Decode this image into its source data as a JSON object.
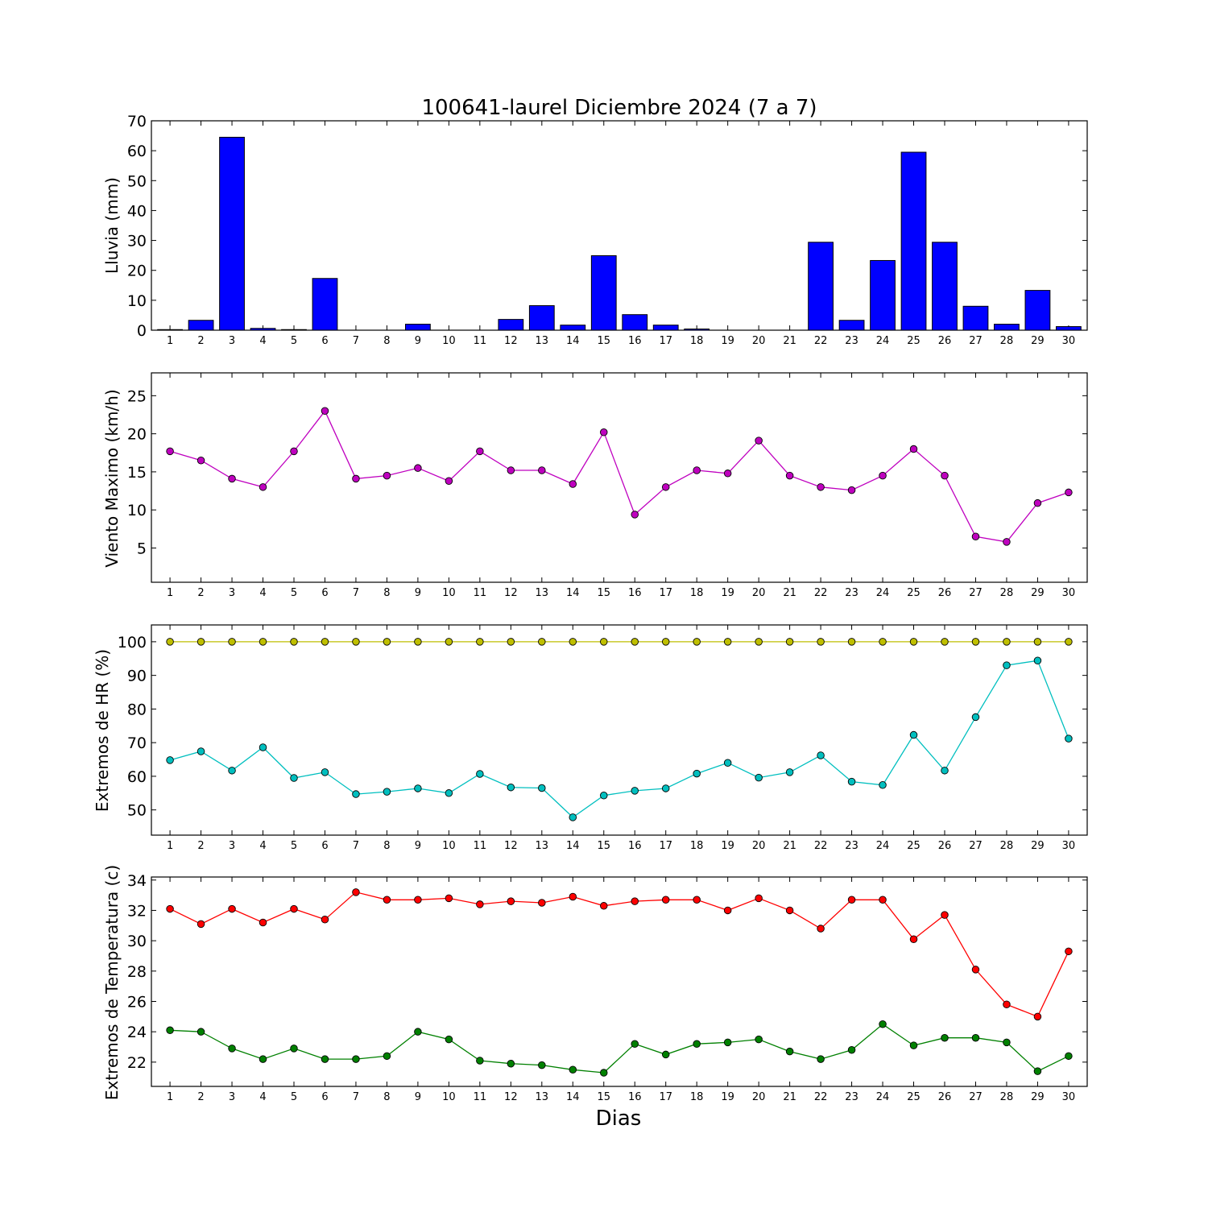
{
  "chart_data": [
    {
      "type": "bar",
      "title": "100641-laurel Diciembre 2024  (7 a 7)",
      "xlabel": "",
      "ylabel": "Lluvia (mm)",
      "categories": [
        "1",
        "2",
        "3",
        "4",
        "5",
        "6",
        "7",
        "8",
        "9",
        "10",
        "11",
        "12",
        "13",
        "14",
        "15",
        "16",
        "17",
        "18",
        "19",
        "20",
        "21",
        "22",
        "23",
        "24",
        "25",
        "26",
        "27",
        "28",
        "29",
        "30"
      ],
      "ylim": [
        0,
        70
      ],
      "yticks": [
        "0",
        "10",
        "20",
        "30",
        "40",
        "50",
        "60",
        "70"
      ],
      "series": [
        {
          "color": "#0000ff",
          "values": [
            0.2,
            3.3,
            64.5,
            0.6,
            0.2,
            17.3,
            0.0,
            0.0,
            2.0,
            0.0,
            0.0,
            3.6,
            8.2,
            1.7,
            24.9,
            5.2,
            1.7,
            0.4,
            0.0,
            0.0,
            0.0,
            29.4,
            3.3,
            23.3,
            59.5,
            29.4,
            8.0,
            2.0,
            13.3,
            1.2
          ]
        }
      ],
      "grid": false
    },
    {
      "type": "line",
      "ylabel": "Viento Maximo (km/h)",
      "categories": [
        "1",
        "2",
        "3",
        "4",
        "5",
        "6",
        "7",
        "8",
        "9",
        "10",
        "11",
        "12",
        "13",
        "14",
        "15",
        "16",
        "17",
        "18",
        "19",
        "20",
        "21",
        "22",
        "23",
        "24",
        "25",
        "26",
        "27",
        "28",
        "29",
        "30"
      ],
      "ylim": [
        0.5,
        28
      ],
      "yticks": [
        "5",
        "10",
        "15",
        "20",
        "25"
      ],
      "series": [
        {
          "color": "#bf00bf",
          "values": [
            17.7,
            16.5,
            14.1,
            13.0,
            17.7,
            23.0,
            14.1,
            14.5,
            15.5,
            13.8,
            17.7,
            15.2,
            15.2,
            13.4,
            20.2,
            9.4,
            13.0,
            15.2,
            14.8,
            19.1,
            14.5,
            13.0,
            12.6,
            14.5,
            18.0,
            14.5,
            6.5,
            5.8,
            10.9,
            12.3
          ]
        }
      ],
      "grid": false
    },
    {
      "type": "line",
      "ylabel": "Extremos de HR (%)",
      "categories": [
        "1",
        "2",
        "3",
        "4",
        "5",
        "6",
        "7",
        "8",
        "9",
        "10",
        "11",
        "12",
        "13",
        "14",
        "15",
        "16",
        "17",
        "18",
        "19",
        "20",
        "21",
        "22",
        "23",
        "24",
        "25",
        "26",
        "27",
        "28",
        "29",
        "30"
      ],
      "ylim": [
        42.5,
        105
      ],
      "yticks": [
        "50",
        "60",
        "70",
        "80",
        "90",
        "100"
      ],
      "series": [
        {
          "color": "#bfbf00",
          "values": [
            100,
            100,
            100,
            100,
            100,
            100,
            100,
            100,
            100,
            100,
            100,
            100,
            100,
            100,
            100,
            100,
            100,
            100,
            100,
            100,
            100,
            100,
            100,
            100,
            100,
            100,
            100,
            100,
            100,
            100
          ]
        },
        {
          "color": "#00bfbf",
          "values": [
            64.8,
            67.4,
            61.7,
            68.6,
            59.5,
            61.2,
            54.7,
            55.4,
            56.4,
            55.0,
            60.7,
            56.7,
            56.5,
            47.8,
            54.3,
            55.7,
            56.4,
            60.8,
            64.0,
            59.6,
            61.2,
            66.2,
            58.4,
            57.4,
            72.3,
            61.7,
            77.6,
            93.0,
            94.4,
            71.2
          ]
        }
      ],
      "grid": false
    },
    {
      "type": "line",
      "xlabel": "Dias",
      "ylabel": "Extremos de Temperatura (c)",
      "categories": [
        "1",
        "2",
        "3",
        "4",
        "5",
        "6",
        "7",
        "8",
        "9",
        "10",
        "11",
        "12",
        "13",
        "14",
        "15",
        "16",
        "17",
        "18",
        "19",
        "20",
        "21",
        "22",
        "23",
        "24",
        "25",
        "26",
        "27",
        "28",
        "29",
        "30"
      ],
      "ylim": [
        20.4,
        34.2
      ],
      "yticks": [
        "22",
        "24",
        "26",
        "28",
        "30",
        "32",
        "34"
      ],
      "series": [
        {
          "color": "#ff0000",
          "values": [
            32.1,
            31.1,
            32.1,
            31.2,
            32.1,
            31.4,
            33.2,
            32.7,
            32.7,
            32.8,
            32.4,
            32.6,
            32.5,
            32.9,
            32.3,
            32.6,
            32.7,
            32.7,
            32.0,
            32.8,
            32.0,
            30.8,
            32.7,
            32.7,
            30.1,
            31.7,
            28.1,
            25.8,
            25.0,
            29.3
          ]
        },
        {
          "color": "#008000",
          "values": [
            24.1,
            24.0,
            22.9,
            22.2,
            22.9,
            22.2,
            22.2,
            22.4,
            24.0,
            23.5,
            22.1,
            21.9,
            21.8,
            21.5,
            21.3,
            23.2,
            22.5,
            23.2,
            23.3,
            23.5,
            22.7,
            22.2,
            22.8,
            24.5,
            23.1,
            23.6,
            23.6,
            23.3,
            21.4,
            22.4
          ]
        }
      ],
      "grid": false
    }
  ]
}
